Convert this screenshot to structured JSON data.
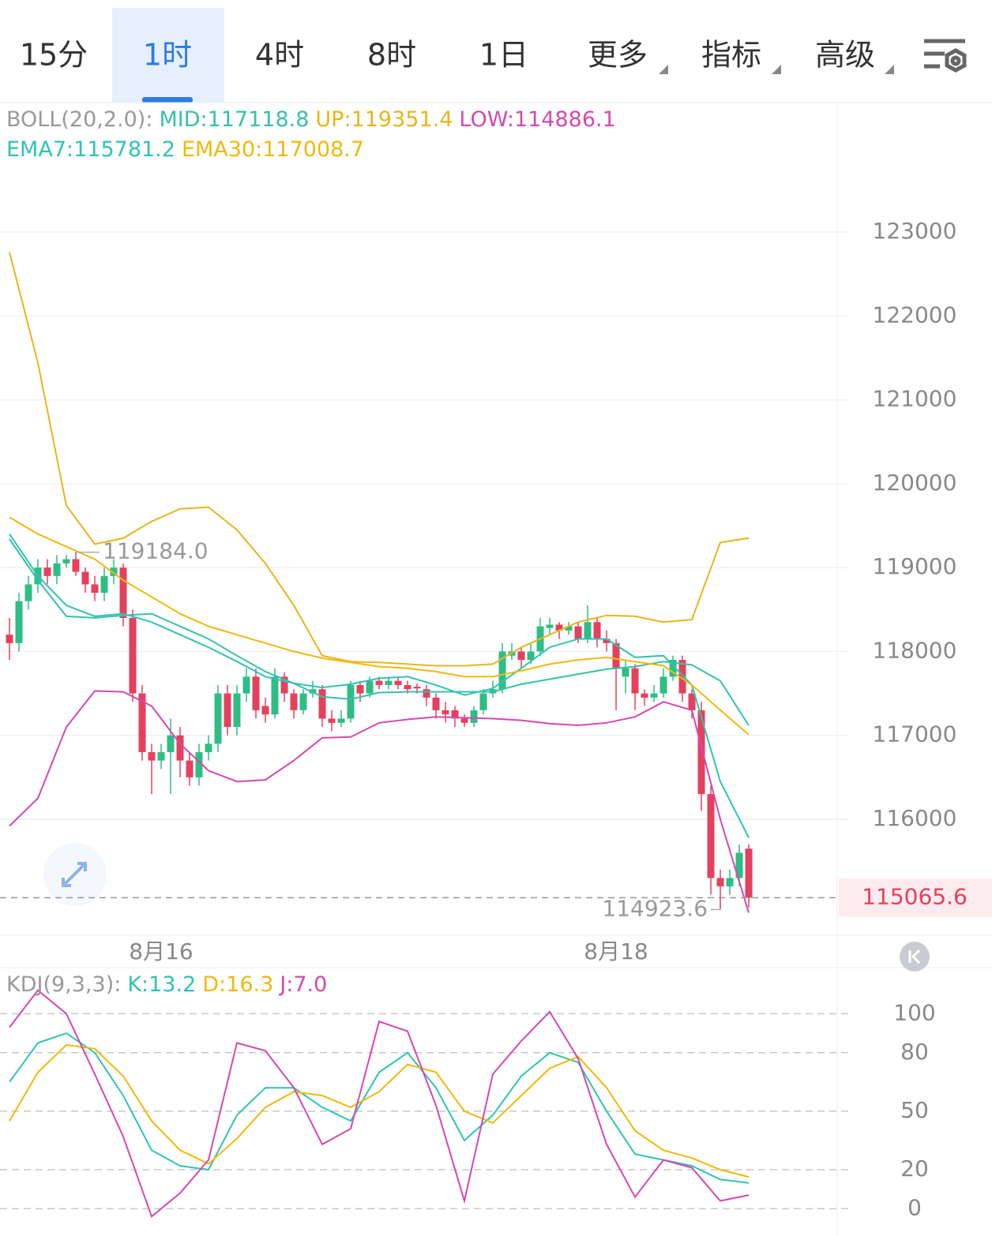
{
  "tabs": [
    "15分",
    "1时",
    "4时",
    "8时",
    "1日",
    "更多",
    "指标",
    "高级"
  ],
  "selected_tab": 1,
  "chart_data": [
    {
      "type": "candlestick",
      "open": [
        118200,
        118100,
        118600,
        118800,
        119000,
        118900,
        119050,
        119100,
        118950,
        118800,
        118700,
        118900,
        119000,
        118400,
        117500,
        116800,
        116700,
        116800,
        117000,
        116700,
        116500,
        116800,
        116900,
        117500,
        117100,
        117500,
        117700,
        117350,
        117250,
        117700,
        117500,
        117300,
        117500,
        117550,
        117200,
        117150,
        117200,
        117600,
        117500,
        117650,
        117600,
        117650,
        117600,
        117580,
        117550,
        117450,
        117300,
        117300,
        117200,
        117150,
        117300,
        117500,
        117550,
        117950,
        118000,
        117900,
        118000,
        118280,
        118320,
        118250,
        118300,
        118150,
        118350,
        118150,
        118100,
        117700,
        117800,
        117500,
        117450,
        117500,
        117700,
        117900,
        117500,
        117300,
        116300,
        115300,
        115200,
        115300,
        115650
      ],
      "high": [
        118400,
        118700,
        118900,
        119100,
        119100,
        119150,
        119150,
        119184,
        119000,
        118900,
        119000,
        119100,
        119050,
        118500,
        117600,
        116900,
        116900,
        117200,
        117100,
        116800,
        116900,
        117000,
        117600,
        117600,
        117600,
        117800,
        117800,
        117450,
        117800,
        117750,
        117550,
        117550,
        117650,
        117600,
        117300,
        117300,
        117650,
        117650,
        117700,
        117700,
        117700,
        117700,
        117650,
        117620,
        117600,
        117500,
        117400,
        117350,
        117250,
        117350,
        117550,
        117650,
        118100,
        118100,
        118050,
        118100,
        118400,
        118400,
        118350,
        118350,
        118350,
        118550,
        118400,
        118250,
        118150,
        117900,
        117850,
        117550,
        117600,
        117800,
        117950,
        117950,
        117550,
        117400,
        116400,
        115400,
        115400,
        115700,
        115700
      ],
      "low": [
        117900,
        118000,
        118500,
        118700,
        118800,
        118800,
        119000,
        118900,
        118700,
        118600,
        118600,
        118800,
        118300,
        117400,
        116700,
        116300,
        116600,
        116300,
        116500,
        116400,
        116400,
        116700,
        116800,
        117000,
        117000,
        117400,
        117200,
        117150,
        117200,
        117400,
        117200,
        117250,
        117450,
        117100,
        117050,
        117100,
        117150,
        117400,
        117450,
        117550,
        117550,
        117550,
        117500,
        117500,
        117350,
        117200,
        117150,
        117100,
        117100,
        117100,
        117250,
        117450,
        117500,
        117900,
        117800,
        117850,
        117950,
        118200,
        118150,
        118200,
        118100,
        118100,
        118050,
        118000,
        117300,
        117500,
        117300,
        117350,
        117400,
        117450,
        117650,
        117400,
        117200,
        116100,
        115100,
        114923.6,
        115100,
        115200,
        114950
      ],
      "close": [
        118100,
        118600,
        118800,
        119000,
        118900,
        119050,
        119100,
        118950,
        118800,
        118700,
        118900,
        119000,
        118400,
        117500,
        116800,
        116700,
        116800,
        117000,
        116700,
        116500,
        116800,
        116900,
        117500,
        117100,
        117500,
        117700,
        117300,
        117250,
        117700,
        117500,
        117300,
        117500,
        117550,
        117200,
        117150,
        117200,
        117600,
        117500,
        117650,
        117600,
        117650,
        117600,
        117550,
        117560,
        117450,
        117300,
        117250,
        117200,
        117150,
        117300,
        117500,
        117550,
        118000,
        118000,
        117900,
        118000,
        118300,
        118320,
        118250,
        118300,
        118150,
        118350,
        118150,
        118100,
        117800,
        117800,
        117500,
        117450,
        117500,
        117700,
        117900,
        117500,
        117300,
        116300,
        115300,
        115200,
        115300,
        115600,
        115065.6
      ],
      "up_color": "#2ebd85",
      "down_color": "#e5405e",
      "line_x": [
        0,
        3,
        6,
        9,
        12,
        15,
        18,
        21,
        24,
        27,
        30,
        33,
        36,
        39,
        42,
        45,
        48,
        51,
        54,
        57,
        60,
        63,
        66,
        69,
        72,
        75,
        78
      ],
      "overlays": [
        {
          "label": "BOLL(20,2.0):",
          "series": [
            {
              "name": "MID:117118.8",
              "color": "#35c2a8",
              "values": [
                119340,
                118850,
                118420,
                118400,
                118430,
                118450,
                118300,
                118150,
                117950,
                117760,
                117620,
                117460,
                117430,
                117510,
                117520,
                117520,
                117520,
                117520,
                117610,
                117670,
                117730,
                117790,
                117820,
                117880,
                117840,
                117650,
                117118.8
              ]
            },
            {
              "name": "UP:119351.4",
              "color": "#e9b51c",
              "values": [
                122760,
                121440,
                119740,
                119280,
                119350,
                119550,
                119700,
                119720,
                119450,
                119050,
                118550,
                117950,
                117880,
                117870,
                117850,
                117830,
                117830,
                117850,
                118050,
                118200,
                118350,
                118430,
                118420,
                118350,
                118380,
                119300,
                119351.4
              ]
            },
            {
              "name": "LOW:114886.1",
              "color": "#d548b0",
              "values": [
                115920,
                116250,
                117100,
                117530,
                117520,
                117350,
                116900,
                116580,
                116450,
                116470,
                116700,
                116970,
                116980,
                117150,
                117190,
                117220,
                117210,
                117200,
                117180,
                117140,
                117120,
                117150,
                117220,
                117400,
                117300,
                116000,
                114886.1
              ]
            }
          ]
        },
        {
          "series": [
            {
              "name": "EMA7:115781.2",
              "color": "#2fc4b2",
              "values": [
                119400,
                118900,
                118550,
                118420,
                118450,
                118350,
                118200,
                118050,
                117880,
                117700,
                117620,
                117570,
                117610,
                117680,
                117700,
                117600,
                117480,
                117560,
                117800,
                118050,
                118150,
                118150,
                117930,
                117950,
                117600,
                116450,
                115781.2
              ]
            },
            {
              "name": "EMA30:117008.7",
              "color": "#f0b90b",
              "values": [
                119600,
                119400,
                119250,
                119100,
                118850,
                118650,
                118450,
                118300,
                118200,
                118100,
                118000,
                117920,
                117870,
                117820,
                117800,
                117760,
                117700,
                117700,
                117770,
                117850,
                117900,
                117930,
                117880,
                117830,
                117600,
                117300,
                117008.7
              ]
            }
          ]
        }
      ],
      "high_label": {
        "value": 119184,
        "label": "119184.0"
      },
      "low_label": 114923.6,
      "last_price": 115065.6,
      "xlim": [
        -1,
        87.33
      ],
      "ylim": [
        114617,
        124543
      ],
      "yticks": [
        116000,
        117000,
        118000,
        119000,
        120000,
        121000,
        122000,
        123000
      ],
      "xticks": [
        {
          "value": 16,
          "label": "8月16"
        },
        {
          "value": 64,
          "label": "8月18"
        }
      ],
      "grid": true
    },
    {
      "type": "line",
      "label": "KDJ(9,3,3):",
      "x": [
        0,
        3,
        6,
        9,
        12,
        15,
        18,
        21,
        24,
        27,
        30,
        33,
        36,
        39,
        42,
        45,
        48,
        51,
        54,
        57,
        60,
        63,
        66,
        69,
        72,
        75,
        78
      ],
      "series": [
        {
          "name": "K:13.2",
          "color": "#2fc4b2",
          "values": [
            65,
            85,
            90,
            80,
            58,
            30,
            22,
            20,
            48,
            62,
            62,
            52,
            45,
            70,
            80,
            62,
            35,
            48,
            68,
            80,
            75,
            50,
            28,
            25,
            22,
            15,
            13.2
          ]
        },
        {
          "name": "D:16.3",
          "color": "#f0b90b",
          "values": [
            45,
            70,
            84,
            82,
            68,
            45,
            30,
            23,
            36,
            52,
            60,
            58,
            52,
            60,
            74,
            70,
            50,
            44,
            58,
            72,
            78,
            62,
            40,
            30,
            26,
            20,
            16.3
          ]
        },
        {
          "name": "J:7.0",
          "color": "#d548b0",
          "values": [
            93,
            112,
            100,
            69,
            37,
            -4,
            8,
            25,
            85,
            81,
            62,
            33,
            41,
            96,
            91,
            53,
            4,
            69,
            86,
            101,
            77,
            33,
            6,
            25,
            21,
            4,
            7
          ]
        }
      ],
      "xlim": [
        -1,
        87.33
      ],
      "ylim": [
        -14,
        122
      ],
      "yticks": [
        0,
        20,
        50,
        80,
        100
      ],
      "grid": true
    }
  ]
}
